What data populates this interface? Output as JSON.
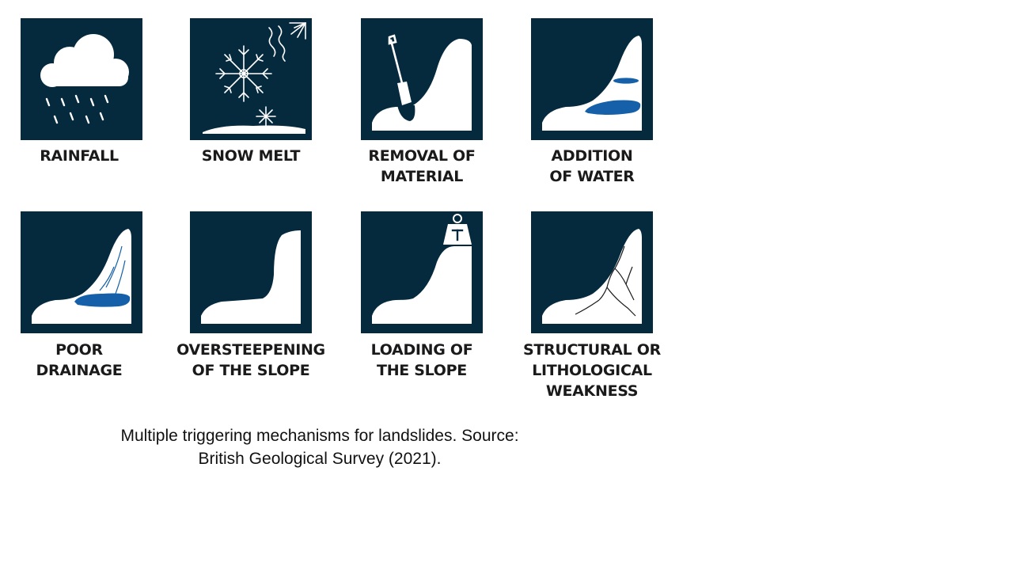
{
  "colors": {
    "tile_background": "#052a3e",
    "ground": "#ffffff",
    "water": "#1560a8"
  },
  "triggers": [
    {
      "label": "RAINFALL",
      "icon": "rain-cloud-icon"
    },
    {
      "label": "SNOW MELT",
      "icon": "snowflake-sun-icon"
    },
    {
      "label": "REMOVAL OF\nMATERIAL",
      "icon": "shovel-slope-icon"
    },
    {
      "label": "ADDITION\nOF WATER",
      "icon": "water-slope-icon"
    },
    {
      "label": "POOR\nDRAINAGE",
      "icon": "drainage-slope-icon"
    },
    {
      "label": "OVERSTEEPENING\nOF THE SLOPE",
      "icon": "steep-slope-icon"
    },
    {
      "label": "LOADING OF\nTHE SLOPE",
      "icon": "weight-slope-icon"
    },
    {
      "label": "STRUCTURAL OR\nLITHOLOGICAL\nWEAKNESS",
      "icon": "cracked-slope-icon"
    }
  ],
  "caption": {
    "line1": "Multiple triggering mechanisms for landslides. Source:",
    "line2": "British Geological Survey (2021)."
  }
}
